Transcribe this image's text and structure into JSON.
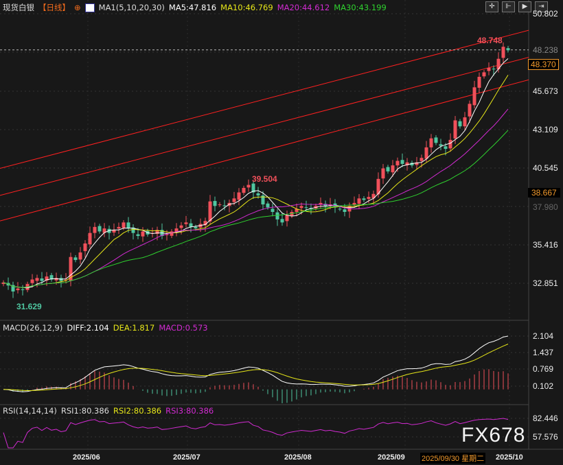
{
  "header": {
    "symbol": "现货白银",
    "period": "【日线】",
    "ma_label": "MA1(5,10,20,30)",
    "ma5": "MA5:47.816",
    "ma10": "MA10:46.769",
    "ma20": "MA20:44.612",
    "ma30": "MA30:43.199"
  },
  "toolbar": {
    "buttons": [
      "crosshair",
      "interval",
      "play",
      "exit"
    ]
  },
  "price_axis": {
    "ticks": [
      "50.802",
      "48.238",
      "45.673",
      "43.109",
      "40.545",
      "37.980",
      "35.416",
      "32.851"
    ],
    "current_price": "48.370",
    "cursor_price": "38.667"
  },
  "annotations": {
    "high": "48.748",
    "low": "31.629",
    "local_high": "39.504"
  },
  "macd": {
    "label": "MACD(26,12,9)",
    "diff": "DIFF:2.104",
    "dea": "DEA:1.817",
    "macd": "MACD:0.573",
    "ticks": [
      "2.104",
      "1.437",
      "0.769",
      "0.102"
    ]
  },
  "rsi": {
    "label": "RSI(14,14,14)",
    "rsi1": "RSI1:80.386",
    "rsi2": "RSI2:80.386",
    "rsi3": "RSI3:80.386",
    "ticks": [
      "82.446",
      "57.576"
    ]
  },
  "date_axis": {
    "labels": [
      "2025/06",
      "2025/07",
      "2025/08",
      "2025/09",
      "2025/10"
    ],
    "cursor_date": "2025/09/30 星期二"
  },
  "watermark": "FX678",
  "colors": {
    "up": "#f0505a",
    "down": "#4fc6a0",
    "ma5": "#ffffff",
    "ma10": "#e6e619",
    "ma20": "#d22bd2",
    "ma30": "#2fd22f",
    "trendline": "#ff2020",
    "accent": "#f39a2c"
  },
  "chart_data": {
    "type": "candlestick",
    "price_range": [
      30.474,
      51.716
    ],
    "close": [
      32.9,
      32.7,
      32.3,
      32.5,
      32.4,
      32.8,
      33.1,
      33.2,
      33.0,
      33.3,
      33.1,
      33.2,
      33.0,
      33.1,
      34.6,
      34.4,
      34.9,
      35.5,
      36.2,
      36.6,
      36.3,
      36.5,
      36.2,
      36.4,
      36.6,
      36.9,
      36.5,
      36.2,
      36.0,
      36.3,
      36.1,
      36.2,
      36.4,
      36.0,
      36.1,
      36.3,
      36.5,
      36.7,
      36.9,
      36.6,
      36.5,
      36.8,
      37.0,
      38.3,
      38.0,
      38.1,
      38.0,
      38.2,
      38.5,
      38.9,
      39.2,
      39.4,
      38.9,
      38.7,
      38.1,
      37.9,
      37.6,
      37.1,
      36.9,
      37.4,
      37.6,
      37.8,
      38.0,
      37.9,
      37.8,
      38.0,
      38.2,
      38.0,
      38.1,
      37.9,
      37.8,
      37.6,
      38.0,
      38.2,
      38.5,
      38.4,
      38.6,
      38.8,
      39.8,
      40.5,
      40.3,
      40.7,
      41.0,
      40.8,
      40.9,
      40.7,
      40.9,
      41.2,
      41.9,
      42.5,
      42.2,
      42.0,
      41.8,
      42.4,
      43.7,
      43.3,
      43.9,
      44.8,
      45.9,
      46.6,
      46.9,
      47.2,
      47.1,
      47.8,
      48.6,
      48.37
    ],
    "trendlines": [
      {
        "start_price": 40.5,
        "end_price": 49.7
      },
      {
        "start_price": 38.7,
        "end_price": 47.9
      },
      {
        "start_price": 37.0,
        "end_price": 46.4
      }
    ]
  }
}
